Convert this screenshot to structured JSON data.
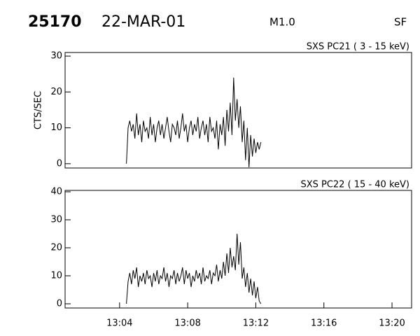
{
  "header": {
    "id": "25170",
    "date": "22-MAR-01",
    "class": "M1.0",
    "code": "SF"
  },
  "chart_data": [
    {
      "type": "line",
      "title": "SXS PC21  (  3 - 15 keV)",
      "y_label": "CTS/SEC",
      "color": "#000000",
      "xlim": [
        0.8,
        21.15
      ],
      "ylim": [
        -1.2,
        31
      ],
      "yticks": [
        0,
        10,
        20,
        30
      ],
      "x": [
        4.4,
        4.5,
        4.6,
        4.7,
        4.8,
        4.9,
        5.0,
        5.1,
        5.2,
        5.3,
        5.4,
        5.5,
        5.6,
        5.7,
        5.8,
        5.9,
        6.0,
        6.1,
        6.2,
        6.3,
        6.4,
        6.5,
        6.6,
        6.7,
        6.8,
        6.9,
        7.0,
        7.1,
        7.2,
        7.3,
        7.4,
        7.5,
        7.6,
        7.7,
        7.8,
        7.9,
        8.0,
        8.1,
        8.2,
        8.3,
        8.4,
        8.5,
        8.6,
        8.7,
        8.8,
        8.9,
        9.0,
        9.1,
        9.2,
        9.3,
        9.4,
        9.5,
        9.6,
        9.7,
        9.8,
        9.9,
        10.0,
        10.1,
        10.2,
        10.3,
        10.4,
        10.5,
        10.6,
        10.7,
        10.8,
        10.9,
        11.0,
        11.1,
        11.2,
        11.3,
        11.4,
        11.5,
        11.6,
        11.7,
        11.8,
        11.9,
        12.0,
        12.1,
        12.2,
        12.3
      ],
      "values": [
        0,
        10,
        12,
        9,
        11,
        7,
        14,
        8,
        11,
        6,
        12,
        9,
        10,
        7,
        13,
        8,
        11,
        6,
        10,
        12,
        8,
        11,
        7,
        10,
        13,
        9,
        6,
        11,
        10,
        8,
        12,
        7,
        10,
        14,
        9,
        11,
        6,
        10,
        12,
        8,
        11,
        9,
        13,
        7,
        10,
        12,
        8,
        11,
        6,
        13,
        9,
        10,
        7,
        12,
        4,
        11,
        8,
        13,
        5,
        15,
        9,
        17,
        8,
        24,
        12,
        18,
        10,
        16,
        6,
        12,
        1,
        10,
        -1,
        8,
        2,
        7,
        3,
        6,
        4,
        6
      ]
    },
    {
      "type": "line",
      "title": "SXS PC22  ( 15 - 40 keV)",
      "color": "#000000",
      "xlim": [
        0.8,
        21.15
      ],
      "ylim": [
        -1.5,
        40.5
      ],
      "yticks": [
        0,
        10,
        20,
        30,
        40
      ],
      "xticks": [
        {
          "value": 4,
          "label": "13:04"
        },
        {
          "value": 8,
          "label": "13:08"
        },
        {
          "value": 12,
          "label": "13:12"
        },
        {
          "value": 16,
          "label": "13:16"
        },
        {
          "value": 20,
          "label": "13:20"
        }
      ],
      "x": [
        4.4,
        4.5,
        4.6,
        4.7,
        4.8,
        4.9,
        5.0,
        5.1,
        5.2,
        5.3,
        5.4,
        5.5,
        5.6,
        5.7,
        5.8,
        5.9,
        6.0,
        6.1,
        6.2,
        6.3,
        6.4,
        6.5,
        6.6,
        6.7,
        6.8,
        6.9,
        7.0,
        7.1,
        7.2,
        7.3,
        7.4,
        7.5,
        7.6,
        7.7,
        7.8,
        7.9,
        8.0,
        8.1,
        8.2,
        8.3,
        8.4,
        8.5,
        8.6,
        8.7,
        8.8,
        8.9,
        9.0,
        9.1,
        9.2,
        9.3,
        9.4,
        9.5,
        9.6,
        9.7,
        9.8,
        9.9,
        10.0,
        10.1,
        10.2,
        10.3,
        10.4,
        10.5,
        10.6,
        10.7,
        10.8,
        10.9,
        11.0,
        11.1,
        11.2,
        11.3,
        11.4,
        11.5,
        11.6,
        11.7,
        11.8,
        11.9,
        12.0,
        12.1,
        12.2,
        12.3
      ],
      "values": [
        0,
        8,
        11,
        7,
        12,
        9,
        13,
        6,
        10,
        8,
        11,
        7,
        12,
        9,
        10,
        6,
        11,
        8,
        12,
        7,
        10,
        9,
        13,
        8,
        11,
        6,
        10,
        9,
        12,
        7,
        11,
        8,
        10,
        13,
        7,
        12,
        9,
        11,
        6,
        10,
        8,
        12,
        9,
        11,
        7,
        13,
        8,
        10,
        9,
        12,
        7,
        11,
        10,
        14,
        8,
        12,
        9,
        15,
        10,
        18,
        11,
        20,
        13,
        17,
        12,
        25,
        14,
        22,
        9,
        13,
        6,
        11,
        4,
        9,
        3,
        8,
        2,
        6,
        1,
        0
      ]
    }
  ]
}
